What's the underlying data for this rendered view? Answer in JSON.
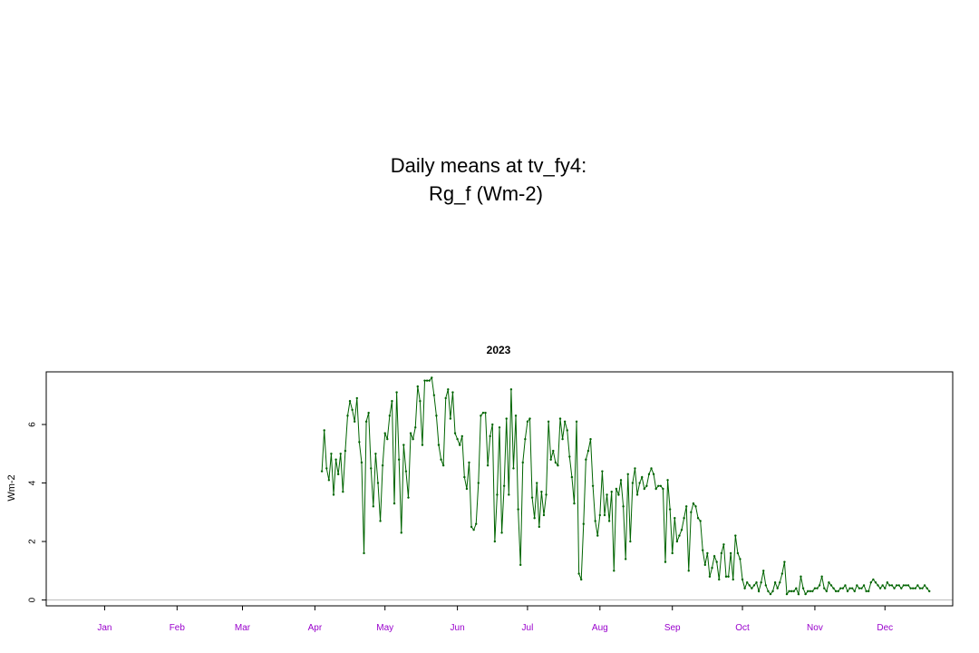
{
  "chart_data": {
    "type": "line",
    "title_line1": "Daily means at tv_fy4:",
    "title_line2": "Rg_f (Wm-2)",
    "panel_title": "2023",
    "ylabel": "Wm-2",
    "xlabel": "",
    "x_tick_labels": [
      "Jan",
      "Feb",
      "Mar",
      "Apr",
      "May",
      "Jun",
      "Jul",
      "Aug",
      "Sep",
      "Oct",
      "Nov",
      "Dec"
    ],
    "x_tick_doy": [
      15,
      46,
      74,
      105,
      135,
      166,
      196,
      227,
      258,
      288,
      319,
      349
    ],
    "xlim": [
      -10,
      378
    ],
    "y_ticks": [
      0,
      2,
      4,
      6
    ],
    "ylim": [
      -0.2,
      7.8
    ],
    "reference_line_y": 0,
    "grid": false,
    "legend": "none",
    "colors": {
      "series": "#006400",
      "tick_labels_x": "#9900CC",
      "reference_line": "#bbbbbb",
      "frame": "#000000"
    },
    "series": [
      {
        "start_doy": 108,
        "values": [
          4.4,
          5.8,
          4.5,
          4.1,
          5.0,
          3.6,
          4.8,
          4.3,
          5.0,
          3.7,
          5.1,
          6.3,
          6.8,
          6.5,
          6.1,
          6.9,
          5.4,
          4.7,
          1.6,
          6.1,
          6.4,
          4.5,
          3.2,
          5.0,
          4.0,
          2.7,
          4.6,
          5.7,
          5.5,
          6.3,
          6.8,
          3.3,
          7.1,
          4.8,
          2.3,
          5.3,
          4.4,
          3.5,
          5.7,
          5.5,
          5.9,
          7.3,
          6.8,
          5.3,
          7.5,
          7.5,
          7.5,
          7.6,
          7.0,
          6.3,
          5.3,
          4.8,
          4.6,
          6.9,
          7.2,
          6.2,
          7.1,
          5.7,
          5.5,
          5.3,
          5.6,
          4.2,
          3.8,
          4.7,
          2.5,
          2.4,
          2.6,
          4.0,
          6.3,
          6.4,
          6.4,
          4.6,
          5.6,
          6.0,
          2.0,
          3.6,
          5.9,
          2.3,
          3.9,
          6.2,
          3.6,
          7.2,
          4.5,
          6.3,
          3.1,
          1.2,
          4.7,
          5.5,
          6.1,
          6.2,
          3.5,
          2.8,
          4.0,
          2.5,
          3.7,
          2.9,
          3.6,
          6.1,
          4.8,
          5.1,
          4.7,
          4.6,
          6.2,
          5.5,
          6.1,
          5.8,
          4.9,
          4.2,
          3.3,
          6.1,
          0.9,
          0.7,
          2.6,
          4.8,
          5.1,
          5.5,
          3.9,
          2.7,
          2.2,
          2.9,
          4.4,
          2.9,
          3.6,
          2.7,
          3.7,
          1.0,
          3.8,
          3.6,
          4.1,
          3.2,
          1.4,
          4.3,
          2.0,
          4.0,
          4.5,
          3.6,
          4.0,
          4.2,
          3.8,
          3.9,
          4.3,
          4.5,
          4.3,
          3.8,
          3.9,
          3.9,
          3.8,
          1.3,
          4.1,
          3.1,
          1.6,
          2.8,
          2.0,
          2.2,
          2.4,
          2.8,
          3.2,
          1.0,
          3.0,
          3.3,
          3.2,
          2.8,
          2.7,
          1.7,
          1.2,
          1.6,
          0.8,
          1.1,
          1.5,
          1.3,
          0.7,
          1.6,
          1.9,
          0.8,
          0.8,
          1.6,
          0.7,
          2.2,
          1.6,
          1.4,
          0.7,
          0.4,
          0.6,
          0.5,
          0.4,
          0.5,
          0.6,
          0.3,
          0.6,
          1.0,
          0.5,
          0.3,
          0.2,
          0.3,
          0.6,
          0.4,
          0.6,
          0.9,
          1.3,
          0.2,
          0.3,
          0.3,
          0.3,
          0.4,
          0.2,
          0.8,
          0.4,
          0.2,
          0.3,
          0.3,
          0.3,
          0.4,
          0.4,
          0.5,
          0.8,
          0.4,
          0.3,
          0.6,
          0.5,
          0.4,
          0.3,
          0.3,
          0.4,
          0.4,
          0.5,
          0.3,
          0.4,
          0.4,
          0.3,
          0.5,
          0.4,
          0.4,
          0.5,
          0.3,
          0.3,
          0.6,
          0.7,
          0.6,
          0.5,
          0.4,
          0.5,
          0.4,
          0.6,
          0.5,
          0.5,
          0.4,
          0.5,
          0.5,
          0.4,
          0.5,
          0.5,
          0.5,
          0.4,
          0.4,
          0.4,
          0.5,
          0.4,
          0.4,
          0.5,
          0.4,
          0.3
        ]
      }
    ]
  }
}
